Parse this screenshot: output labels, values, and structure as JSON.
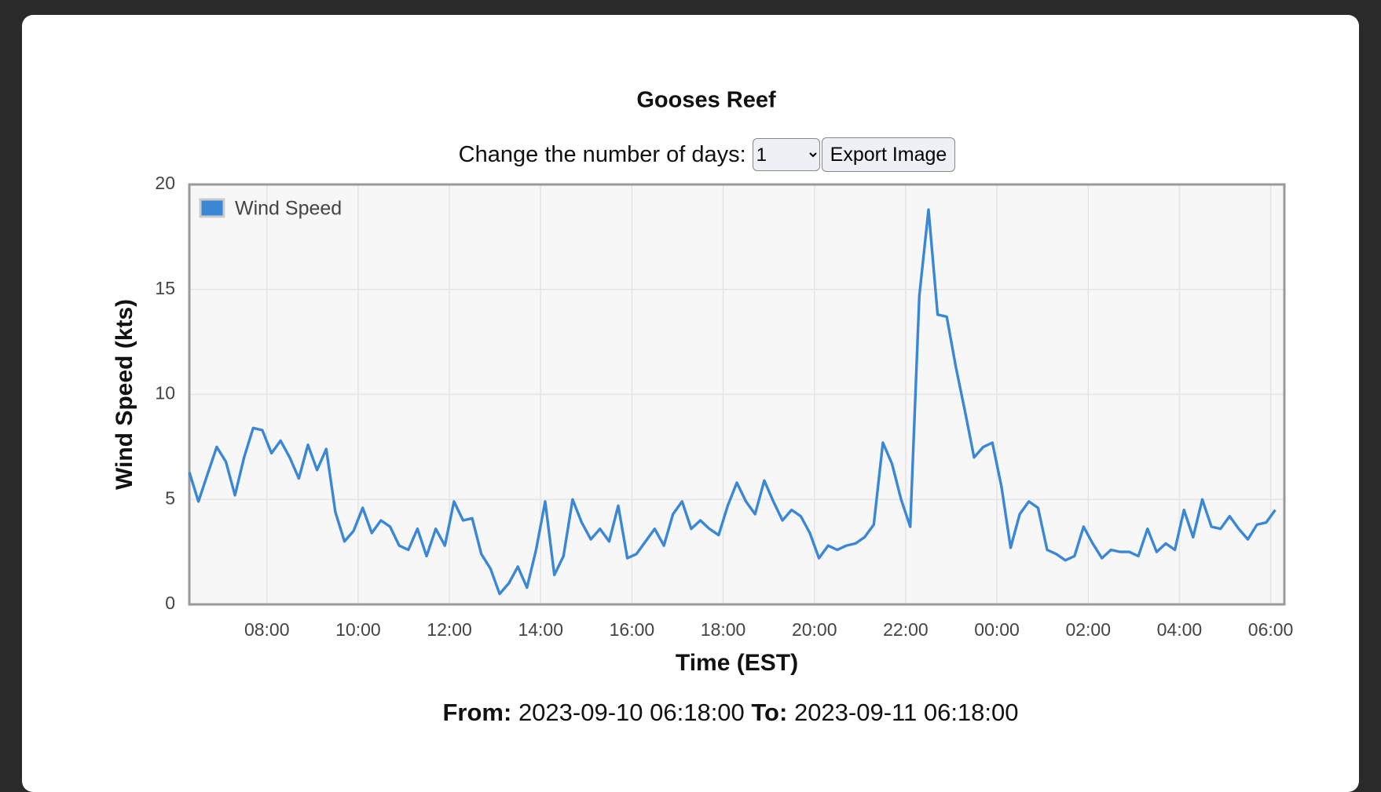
{
  "header": {
    "title": "Gooses Reef"
  },
  "controls": {
    "days_label": "Change the number of days:",
    "days_value": "1",
    "export_button": "Export Image"
  },
  "footer": {
    "from_label": "From:",
    "from_value": "2023-09-10 06:18:00",
    "to_label": "To:",
    "to_value": "2023-09-11 06:18:00"
  },
  "chart_data": {
    "type": "line",
    "x_label": "Time (EST)",
    "y_label": "Wind Speed (kts)",
    "x": [
      "06:18",
      "06:30",
      "06:42",
      "06:54",
      "07:06",
      "07:18",
      "07:30",
      "07:42",
      "07:54",
      "08:06",
      "08:18",
      "08:30",
      "08:42",
      "08:54",
      "09:06",
      "09:18",
      "09:30",
      "09:42",
      "09:54",
      "10:06",
      "10:18",
      "10:30",
      "10:42",
      "10:54",
      "11:06",
      "11:18",
      "11:30",
      "11:42",
      "11:54",
      "12:06",
      "12:18",
      "12:30",
      "12:42",
      "12:54",
      "13:06",
      "13:18",
      "13:30",
      "13:42",
      "13:54",
      "14:06",
      "14:18",
      "14:30",
      "14:42",
      "14:54",
      "15:06",
      "15:18",
      "15:30",
      "15:42",
      "15:54",
      "16:06",
      "16:18",
      "16:30",
      "16:42",
      "16:54",
      "17:06",
      "17:18",
      "17:30",
      "17:42",
      "17:54",
      "18:06",
      "18:18",
      "18:30",
      "18:42",
      "18:54",
      "19:06",
      "19:18",
      "19:30",
      "19:42",
      "19:54",
      "20:06",
      "20:18",
      "20:30",
      "20:42",
      "20:54",
      "21:06",
      "21:18",
      "21:30",
      "21:42",
      "21:54",
      "22:06",
      "22:18",
      "22:30",
      "22:42",
      "22:54",
      "23:06",
      "23:18",
      "23:30",
      "23:42",
      "23:54",
      "00:06",
      "00:18",
      "00:30",
      "00:42",
      "00:54",
      "01:06",
      "01:18",
      "01:30",
      "01:42",
      "01:54",
      "02:06",
      "02:18",
      "02:30",
      "02:42",
      "02:54",
      "03:06",
      "03:18",
      "03:30",
      "03:42",
      "03:54",
      "04:06",
      "04:18",
      "04:30",
      "04:42",
      "04:54",
      "05:06",
      "05:18",
      "05:30",
      "05:42",
      "05:54",
      "06:06"
    ],
    "series": [
      {
        "name": "Wind Speed",
        "color": "#3a87d6",
        "values": [
          6.3,
          4.9,
          6.2,
          7.5,
          6.8,
          5.2,
          7.0,
          8.4,
          8.3,
          7.2,
          7.8,
          7.0,
          6.0,
          7.6,
          6.4,
          7.4,
          4.4,
          3.0,
          3.5,
          4.6,
          3.4,
          4.0,
          3.7,
          2.8,
          2.6,
          3.6,
          2.3,
          3.6,
          2.8,
          4.9,
          4.0,
          4.1,
          2.4,
          1.7,
          0.5,
          1.0,
          1.8,
          0.8,
          2.6,
          4.9,
          1.4,
          2.3,
          5.0,
          3.9,
          3.1,
          3.6,
          3.0,
          4.7,
          2.2,
          2.4,
          3.0,
          3.6,
          2.8,
          4.3,
          4.9,
          3.6,
          4.0,
          3.6,
          3.3,
          4.7,
          5.8,
          4.9,
          4.3,
          5.9,
          4.9,
          4.0,
          4.5,
          4.2,
          3.4,
          2.2,
          2.8,
          2.6,
          2.8,
          2.9,
          3.2,
          3.8,
          7.7,
          6.7,
          5.0,
          3.7,
          14.7,
          18.8,
          13.8,
          13.7,
          11.3,
          9.2,
          7.0,
          7.5,
          7.7,
          5.6,
          2.7,
          4.3,
          4.9,
          4.6,
          2.6,
          2.4,
          2.1,
          2.3,
          3.7,
          2.9,
          2.2,
          2.6,
          2.5,
          2.5,
          2.3,
          3.6,
          2.5,
          2.9,
          2.6,
          4.5,
          3.2,
          5.0,
          3.7,
          3.6,
          4.2,
          3.6,
          3.1,
          3.8,
          3.9,
          4.5
        ]
      }
    ],
    "xlim": [
      "06:18",
      "06:18"
    ],
    "xticks": [
      "08:00",
      "10:00",
      "12:00",
      "14:00",
      "16:00",
      "18:00",
      "20:00",
      "22:00",
      "00:00",
      "02:00",
      "04:00",
      "06:00"
    ],
    "ylim": [
      0,
      20
    ],
    "yticks": [
      0,
      5,
      10,
      15,
      20
    ],
    "grid": true,
    "legend": "top-left"
  }
}
